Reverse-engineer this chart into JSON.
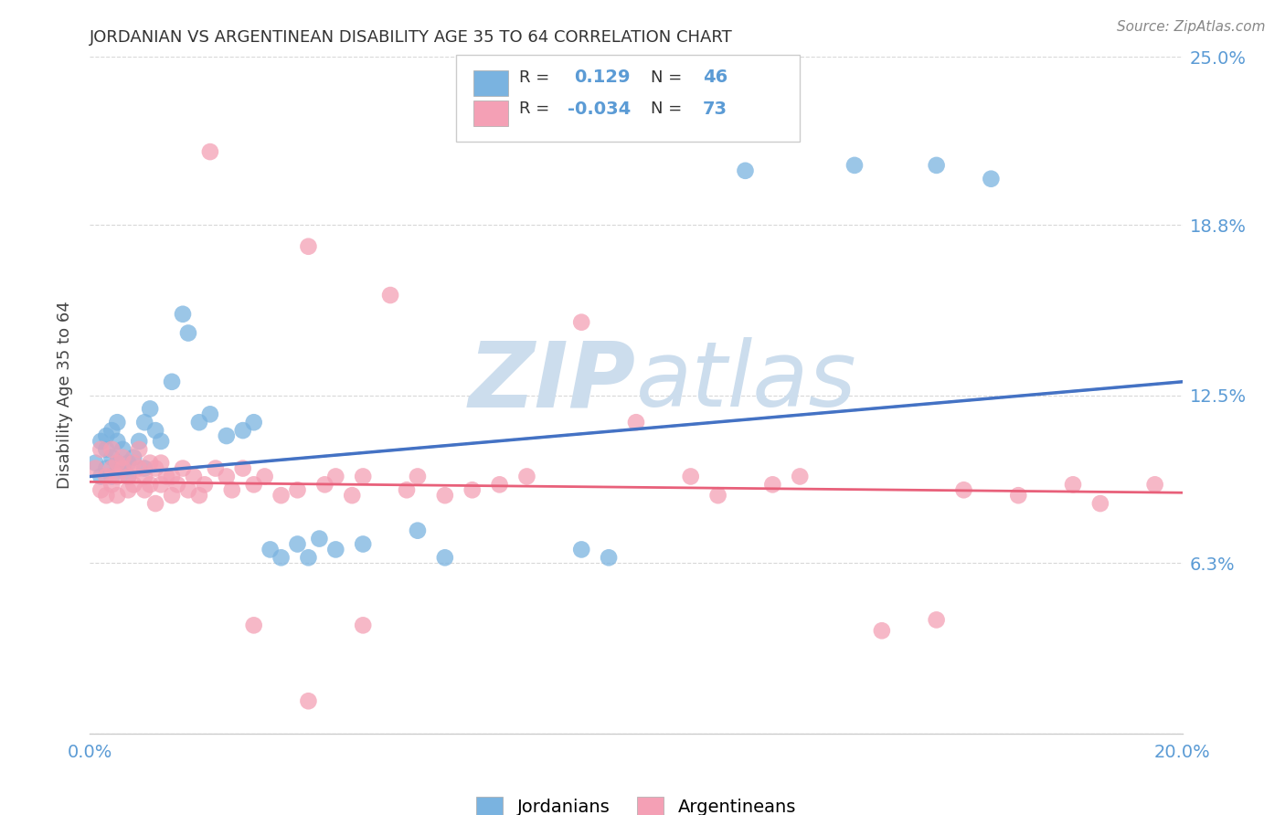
{
  "title": "JORDANIAN VS ARGENTINEAN DISABILITY AGE 35 TO 64 CORRELATION CHART",
  "source": "Source: ZipAtlas.com",
  "ylabel": "Disability Age 35 to 64",
  "xlim": [
    0.0,
    0.2
  ],
  "ylim": [
    0.0,
    0.25
  ],
  "ytick_positions": [
    0.0,
    0.063,
    0.125,
    0.188,
    0.25
  ],
  "ytick_labels": [
    "",
    "6.3%",
    "12.5%",
    "18.8%",
    "25.0%"
  ],
  "jordan_color": "#7ab3e0",
  "argent_color": "#f4a0b5",
  "jordan_line_color": "#4472c4",
  "argent_line_color": "#e8607a",
  "dashed_color": "#a8c8e8",
  "watermark_color": "#ccdded",
  "background_color": "#ffffff",
  "grid_color": "#d8d8d8",
  "tick_color": "#5b9bd5",
  "jordan_x": [
    0.001,
    0.002,
    0.002,
    0.003,
    0.003,
    0.003,
    0.004,
    0.004,
    0.004,
    0.005,
    0.005,
    0.005,
    0.006,
    0.006,
    0.007,
    0.007,
    0.008,
    0.009,
    0.01,
    0.01,
    0.011,
    0.012,
    0.013,
    0.015,
    0.017,
    0.018,
    0.02,
    0.022,
    0.025,
    0.028,
    0.03,
    0.033,
    0.035,
    0.038,
    0.04,
    0.042,
    0.045,
    0.05,
    0.06,
    0.065,
    0.09,
    0.095,
    0.12,
    0.14,
    0.155,
    0.165
  ],
  "jordan_y": [
    0.1,
    0.095,
    0.108,
    0.098,
    0.105,
    0.11,
    0.095,
    0.102,
    0.112,
    0.1,
    0.108,
    0.115,
    0.098,
    0.105,
    0.1,
    0.095,
    0.102,
    0.108,
    0.115,
    0.098,
    0.12,
    0.112,
    0.108,
    0.13,
    0.155,
    0.148,
    0.115,
    0.118,
    0.11,
    0.112,
    0.115,
    0.068,
    0.065,
    0.07,
    0.065,
    0.072,
    0.068,
    0.07,
    0.075,
    0.065,
    0.068,
    0.065,
    0.208,
    0.21,
    0.21,
    0.205
  ],
  "argent_x": [
    0.001,
    0.002,
    0.002,
    0.003,
    0.003,
    0.004,
    0.004,
    0.004,
    0.005,
    0.005,
    0.005,
    0.006,
    0.006,
    0.007,
    0.007,
    0.008,
    0.008,
    0.009,
    0.009,
    0.01,
    0.01,
    0.011,
    0.011,
    0.012,
    0.012,
    0.013,
    0.013,
    0.014,
    0.015,
    0.015,
    0.016,
    0.017,
    0.018,
    0.019,
    0.02,
    0.021,
    0.022,
    0.023,
    0.025,
    0.026,
    0.028,
    0.03,
    0.032,
    0.035,
    0.038,
    0.04,
    0.043,
    0.045,
    0.048,
    0.05,
    0.055,
    0.058,
    0.06,
    0.065,
    0.07,
    0.075,
    0.08,
    0.09,
    0.1,
    0.11,
    0.115,
    0.125,
    0.13,
    0.145,
    0.155,
    0.16,
    0.17,
    0.18,
    0.185,
    0.195,
    0.03,
    0.04,
    0.05
  ],
  "argent_y": [
    0.098,
    0.09,
    0.105,
    0.088,
    0.095,
    0.098,
    0.105,
    0.092,
    0.1,
    0.095,
    0.088,
    0.102,
    0.098,
    0.09,
    0.095,
    0.1,
    0.092,
    0.098,
    0.105,
    0.09,
    0.095,
    0.1,
    0.092,
    0.098,
    0.085,
    0.092,
    0.1,
    0.095,
    0.088,
    0.095,
    0.092,
    0.098,
    0.09,
    0.095,
    0.088,
    0.092,
    0.215,
    0.098,
    0.095,
    0.09,
    0.098,
    0.092,
    0.095,
    0.088,
    0.09,
    0.18,
    0.092,
    0.095,
    0.088,
    0.095,
    0.162,
    0.09,
    0.095,
    0.088,
    0.09,
    0.092,
    0.095,
    0.152,
    0.115,
    0.095,
    0.088,
    0.092,
    0.095,
    0.038,
    0.042,
    0.09,
    0.088,
    0.092,
    0.085,
    0.092,
    0.04,
    0.012,
    0.04
  ]
}
